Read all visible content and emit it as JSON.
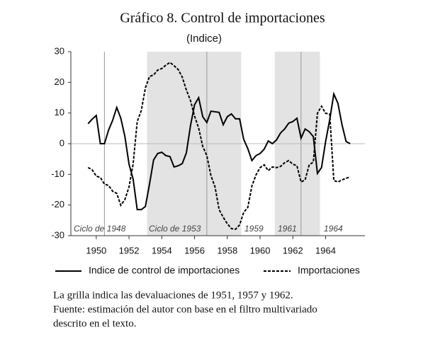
{
  "chart_data": {
    "type": "line",
    "title": "Gráfico 8. Control de importaciones",
    "subtitle": "(Indice)",
    "xlim": [
      1948.45,
      1966.4
    ],
    "ylim": [
      -30,
      30
    ],
    "xticks": [
      1950,
      1952,
      1954,
      1956,
      1958,
      1960,
      1962,
      1964
    ],
    "yticks": [
      30,
      20,
      10,
      0,
      -10,
      -20,
      -30
    ],
    "shaded_periods": [
      [
        1953.1,
        1958.85
      ],
      [
        1960.9,
        1963.65
      ]
    ],
    "grid_x": [
      1950.5,
      1956.75,
      1962.5
    ],
    "annotations": [
      "Ciclo de 1948",
      "Ciclo de 1953",
      "1959",
      "1961",
      "1964"
    ],
    "x": [
      1949.5,
      1949.75,
      1950,
      1950.25,
      1950.5,
      1950.75,
      1951,
      1951.25,
      1951.5,
      1951.75,
      1952,
      1952.25,
      1952.5,
      1952.75,
      1953,
      1953.25,
      1953.5,
      1953.75,
      1954,
      1954.25,
      1954.5,
      1954.75,
      1955,
      1955.25,
      1955.5,
      1955.75,
      1956,
      1956.25,
      1956.5,
      1956.75,
      1957,
      1957.25,
      1957.5,
      1957.75,
      1958,
      1958.25,
      1958.5,
      1958.75,
      1959,
      1959.25,
      1959.5,
      1959.75,
      1960,
      1960.25,
      1960.5,
      1960.75,
      1961,
      1961.25,
      1961.5,
      1961.75,
      1962,
      1962.25,
      1962.5,
      1962.75,
      1963,
      1963.25,
      1963.5,
      1963.75,
      1964,
      1964.25,
      1964.5,
      1964.75,
      1965,
      1965.25,
      1965.5
    ],
    "series": [
      {
        "name": "Indice de control de importaciones",
        "color": "#000000",
        "style": "solid",
        "values": [
          6.5,
          8,
          9.2,
          0,
          0,
          4.4,
          7.6,
          11.8,
          8.3,
          2.3,
          -6.7,
          -11.5,
          -21.5,
          -21.5,
          -20.5,
          -13.2,
          -5.3,
          -3.2,
          -2.8,
          -3.9,
          -4.2,
          -7.6,
          -7.2,
          -6.5,
          -3,
          5.8,
          12.7,
          15,
          8.8,
          6.9,
          10.6,
          10.4,
          10.2,
          6.2,
          8.8,
          9.7,
          8.1,
          8.1,
          1.4,
          -1.6,
          -5.5,
          -3.9,
          -3.2,
          -1.8,
          0.9,
          0,
          1.2,
          3.5,
          4.8,
          6.7,
          7.2,
          8.3,
          1.8,
          4.8,
          3.9,
          2.3,
          -9.7,
          -7.8,
          0.7,
          7.8,
          16.2,
          13.2,
          6.2,
          0.7,
          0
        ]
      },
      {
        "name": "Importaciones",
        "color": "#000000",
        "style": "dashed",
        "values": [
          -7.8,
          -8.5,
          -10.6,
          -11,
          -13.2,
          -13.6,
          -15.5,
          -16.2,
          -20.1,
          -18.2,
          -14.1,
          -6.7,
          7.2,
          10.8,
          18.2,
          21.9,
          22.4,
          24,
          24.5,
          25.6,
          26.5,
          25.4,
          24.2,
          21.7,
          17.5,
          14.1,
          9,
          5.1,
          -0.9,
          -3.9,
          -10.4,
          -14.1,
          -21.5,
          -24,
          -26.1,
          -27.7,
          -27.9,
          -26.5,
          -22.4,
          -20.8,
          -13.8,
          -10.2,
          -7.8,
          -6.9,
          -8.8,
          -7.6,
          -7.8,
          -7.4,
          -6.2,
          -5.5,
          -6.7,
          -7.2,
          -12.5,
          -11.8,
          -6.9,
          -6,
          9.9,
          12.2,
          9.9,
          9.7,
          -12,
          -12.5,
          -11.8,
          -11.3,
          -10.8
        ]
      }
    ],
    "notes": [
      "La grilla indica las devaluaciones de 1951, 1957 y 1962.",
      "Fuente: estimación del autor con base en el filtro multivariado",
      "descrito en el texto."
    ]
  }
}
